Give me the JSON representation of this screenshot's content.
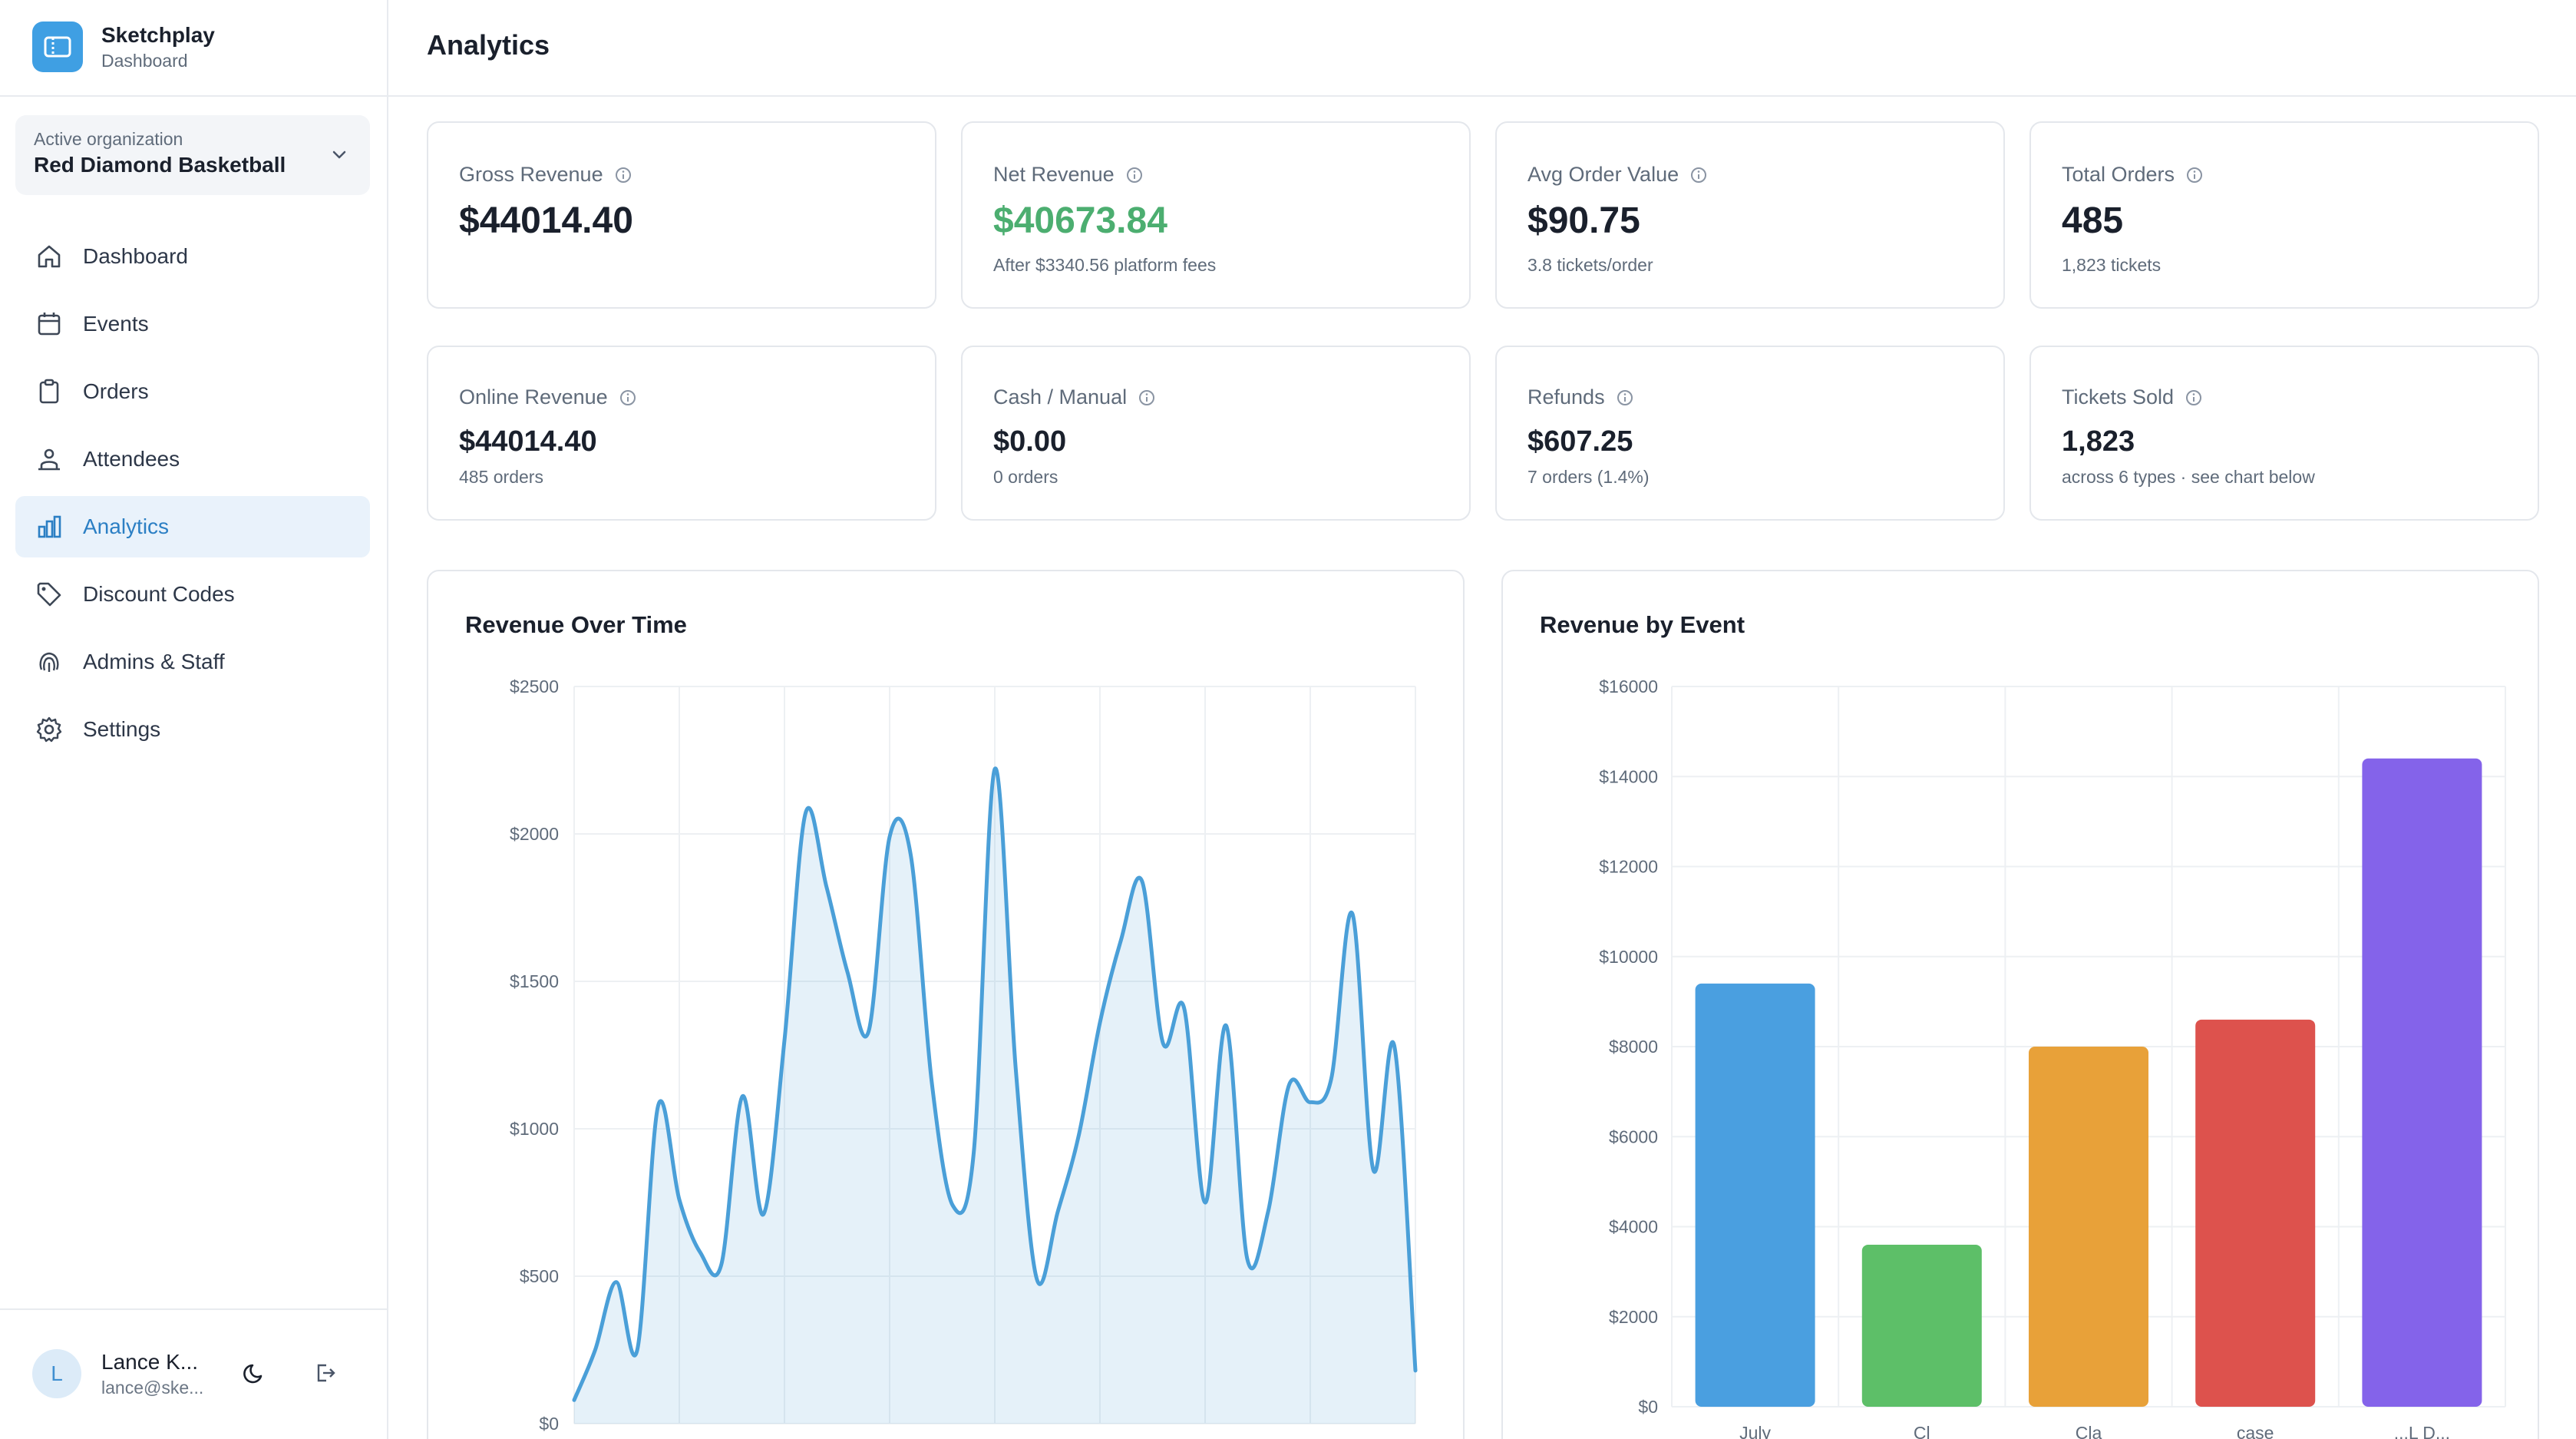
{
  "brand": {
    "name": "Sketchplay",
    "subtitle": "Dashboard"
  },
  "org": {
    "label": "Active organization",
    "name": "Red Diamond Basketball"
  },
  "nav": [
    {
      "label": "Dashboard",
      "icon": "home-icon"
    },
    {
      "label": "Events",
      "icon": "calendar-icon"
    },
    {
      "label": "Orders",
      "icon": "clipboard-icon"
    },
    {
      "label": "Attendees",
      "icon": "users-icon"
    },
    {
      "label": "Analytics",
      "icon": "bar-chart-icon",
      "active": true
    },
    {
      "label": "Discount Codes",
      "icon": "tag-icon"
    },
    {
      "label": "Admins & Staff",
      "icon": "fingerprint-icon"
    },
    {
      "label": "Settings",
      "icon": "gear-icon"
    }
  ],
  "user": {
    "initial": "L",
    "name": "Lance K...",
    "email": "lance@ske..."
  },
  "page": {
    "title": "Analytics"
  },
  "stats": {
    "gross": {
      "label": "Gross Revenue",
      "value": "$44014.40"
    },
    "net": {
      "label": "Net Revenue",
      "value": "$40673.84",
      "sub": "After $3340.56 platform fees"
    },
    "aov": {
      "label": "Avg Order Value",
      "value": "$90.75",
      "sub": "3.8 tickets/order"
    },
    "orders": {
      "label": "Total Orders",
      "value": "485",
      "sub": "1,823 tickets"
    },
    "online": {
      "label": "Online Revenue",
      "value": "$44014.40",
      "sub": "485 orders"
    },
    "cash": {
      "label": "Cash / Manual",
      "value": "$0.00",
      "sub": "0 orders"
    },
    "refunds": {
      "label": "Refunds",
      "value": "$607.25",
      "sub": "7 orders (1.4%)"
    },
    "tickets": {
      "label": "Tickets Sold",
      "value": "1,823",
      "sub": "across 6 types · see chart below"
    }
  },
  "colors": {
    "accent": "#3f9fe3",
    "positive": "#4cae70",
    "line": "#4a9fd8",
    "bars": [
      "#4a9fe0",
      "#5dbf68",
      "#e8a139",
      "#dd524d",
      "#8463ea"
    ]
  },
  "chart_data": [
    {
      "type": "area",
      "title": "Revenue Over Time",
      "ylim": [
        0,
        2500
      ],
      "y_ticks": [
        "$0",
        "$500",
        "$1000",
        "$1500",
        "$2000",
        "$2500"
      ],
      "grid": true,
      "values": [
        80,
        250,
        480,
        250,
        1080,
        760,
        580,
        540,
        1110,
        710,
        1300,
        2070,
        1820,
        1530,
        1330,
        1990,
        1930,
        1160,
        740,
        920,
        2220,
        1200,
        490,
        720,
        980,
        1360,
        1640,
        1840,
        1290,
        1410,
        750,
        1350,
        560,
        720,
        1150,
        1090,
        1170,
        1730,
        860,
        1280,
        180
      ]
    },
    {
      "type": "bar",
      "title": "Revenue by Event",
      "ylim": [
        0,
        16000
      ],
      "y_ticks": [
        "$0",
        "$2000",
        "$4000",
        "$6000",
        "$8000",
        "$10000",
        "$12000",
        "$14000",
        "$16000"
      ],
      "grid": true,
      "categories": [
        "July",
        "Cl",
        "Cla",
        "case",
        "...L D..."
      ],
      "values": [
        9400,
        3600,
        8000,
        8600,
        14400
      ]
    }
  ]
}
